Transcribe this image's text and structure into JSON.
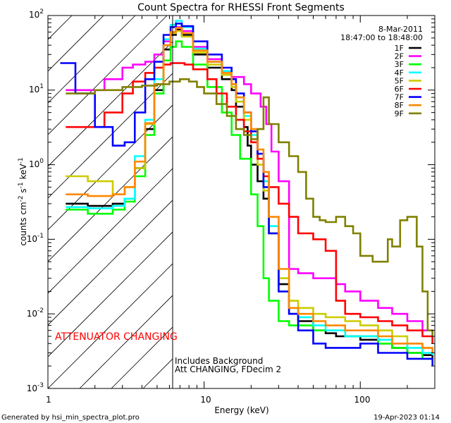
{
  "chart_data": {
    "type": "line",
    "title": "Count Spectra for RHESSI Front Segments",
    "xlabel": "Energy (keV)",
    "ylabel": "counts cm-2 s-1 keV-1",
    "xscale": "log",
    "yscale": "log",
    "xlim": [
      1,
      300
    ],
    "ylim": [
      0.001,
      100
    ],
    "x_tick_labels": [
      "1",
      "10",
      "100"
    ],
    "y_tick_labels": [
      "10-3",
      "10-2",
      "10-1",
      "100",
      "101",
      "102"
    ],
    "date": "8-Mar-2011",
    "time_range": "18:47:00 to 18:48:00",
    "attenuator_label": "ATTENUATOR CHANGING",
    "note_line1": "Includes Background",
    "note_line2": "Att CHANGING, FDecim 2",
    "footer_left": "Generated by hsi_min_spectra_plot.pro",
    "footer_right": "19-Apr-2023 01:14",
    "attenuator_boundary_keV": 6,
    "series": [
      {
        "name": "1F",
        "color": "#000000",
        "x": [
          1.3,
          1.8,
          2.6,
          3.1,
          3.6,
          4.2,
          4.8,
          5.5,
          6.1,
          6.6,
          7.2,
          8.5,
          10.5,
          13,
          15,
          16,
          18,
          19,
          20,
          22,
          24,
          26,
          30,
          35,
          40,
          50,
          60,
          70,
          80,
          100,
          130,
          160,
          200,
          250,
          290
        ],
        "y": [
          0.3,
          0.28,
          0.3,
          0.35,
          0.9,
          3,
          10,
          35,
          55,
          65,
          55,
          30,
          20,
          14,
          10,
          6,
          3.2,
          1.8,
          1,
          0.6,
          0.35,
          0.12,
          0.025,
          0.01,
          0.008,
          0.006,
          0.0055,
          0.005,
          0.005,
          0.0045,
          0.004,
          0.0035,
          0.003,
          0.0028,
          0.0025
        ]
      },
      {
        "name": "2F",
        "color": "#ff00ff",
        "x": [
          1.3,
          1.6,
          2.3,
          3,
          3.5,
          4.2,
          4.8,
          5.5,
          6.1,
          6.6,
          7.2,
          8.5,
          10.5,
          13,
          15,
          18,
          20,
          23,
          25,
          27,
          30,
          35,
          40,
          50,
          60,
          70,
          80,
          100,
          130,
          160,
          200,
          250,
          290
        ],
        "y": [
          10,
          10,
          14,
          20,
          22,
          24,
          30,
          45,
          60,
          70,
          62,
          38,
          26,
          18,
          15,
          12,
          9,
          6,
          3.5,
          1.5,
          0.6,
          0.04,
          0.035,
          0.03,
          0.03,
          0.025,
          0.02,
          0.015,
          0.012,
          0.01,
          0.008,
          0.006,
          0.004
        ]
      },
      {
        "name": "3F",
        "color": "#00ff00",
        "x": [
          1.3,
          1.8,
          2.6,
          3.1,
          3.6,
          4.2,
          4.8,
          5.5,
          6.1,
          6.6,
          7.2,
          8.5,
          10.5,
          13,
          15,
          17,
          20,
          22,
          24,
          26,
          30,
          35,
          40,
          50,
          60,
          80,
          100,
          130,
          160,
          200,
          250,
          290
        ],
        "y": [
          0.25,
          0.22,
          0.25,
          0.32,
          0.7,
          2.5,
          9,
          25,
          38,
          45,
          38,
          22,
          11,
          5,
          2.5,
          1.2,
          0.4,
          0.15,
          0.03,
          0.015,
          0.008,
          0.007,
          0.007,
          0.006,
          0.006,
          0.005,
          0.005,
          0.004,
          0.0035,
          0.003,
          0.0025,
          0.0025
        ]
      },
      {
        "name": "4F",
        "color": "#00ffff",
        "x": [
          1.3,
          1.8,
          2.6,
          3.1,
          3.6,
          4.2,
          4.8,
          5.5,
          6.1,
          6.6,
          7.2,
          8.5,
          10.5,
          13,
          15,
          16,
          18,
          20,
          22,
          24,
          26,
          30,
          35,
          40,
          50,
          60,
          80,
          100,
          130,
          160,
          200,
          250,
          290
        ],
        "y": [
          0.27,
          0.26,
          0.28,
          0.35,
          1.3,
          4,
          14,
          48,
          75,
          85,
          70,
          36,
          24,
          18,
          12,
          7,
          4.5,
          2.5,
          1.2,
          0.6,
          0.15,
          0.03,
          0.012,
          0.009,
          0.007,
          0.006,
          0.005,
          0.005,
          0.0045,
          0.004,
          0.0035,
          0.003,
          0.0028
        ]
      },
      {
        "name": "5F",
        "color": "#cccc00",
        "x": [
          1.3,
          1.8,
          2.6,
          3.1,
          3.6,
          4.2,
          4.8,
          5.5,
          6.1,
          6.6,
          7.2,
          8.5,
          10.5,
          13,
          15,
          16,
          18,
          20,
          22,
          24,
          26,
          30,
          35,
          40,
          50,
          60,
          80,
          100,
          130,
          160,
          200,
          250,
          290
        ],
        "y": [
          0.7,
          0.6,
          0.4,
          0.5,
          0.9,
          3.5,
          12,
          40,
          58,
          62,
          52,
          32,
          22,
          16,
          11,
          7,
          4,
          2,
          1,
          0.45,
          0.12,
          0.03,
          0.015,
          0.012,
          0.01,
          0.009,
          0.008,
          0.007,
          0.006,
          0.005,
          0.004,
          0.0035,
          0.003
        ]
      },
      {
        "name": "6F",
        "color": "#ff0000",
        "x": [
          1.3,
          1.6,
          2.3,
          3,
          3.5,
          4.2,
          4.8,
          5.5,
          6.1,
          6.6,
          7.5,
          8.5,
          10.5,
          12,
          14,
          16,
          18,
          20,
          22,
          24,
          26,
          30,
          35,
          40,
          50,
          60,
          70,
          80,
          100,
          130,
          160,
          200,
          250,
          290
        ],
        "y": [
          3.2,
          3.2,
          5,
          9,
          13,
          17,
          20,
          22,
          23,
          23,
          22,
          19,
          14,
          9,
          6,
          4,
          2.8,
          2,
          1.2,
          0.7,
          0.5,
          0.3,
          0.2,
          0.12,
          0.1,
          0.07,
          0.015,
          0.01,
          0.009,
          0.008,
          0.007,
          0.006,
          0.005,
          0.004
        ]
      },
      {
        "name": "7F",
        "color": "#0000ff",
        "x": [
          1.2,
          1.5,
          2,
          2.6,
          3.1,
          3.6,
          4.2,
          4.8,
          5.5,
          6.1,
          6.6,
          7.2,
          8.5,
          10.5,
          13,
          15,
          16,
          18,
          20,
          22,
          24,
          26,
          30,
          35,
          40,
          50,
          60,
          80,
          100,
          130,
          160,
          200,
          250,
          290
        ],
        "y": [
          23,
          9,
          3.2,
          1.8,
          2,
          5,
          14,
          24,
          55,
          70,
          78,
          72,
          45,
          30,
          20,
          14,
          9,
          5,
          2.8,
          1.4,
          0.5,
          0.12,
          0.02,
          0.01,
          0.006,
          0.004,
          0.0035,
          0.0035,
          0.004,
          0.003,
          0.003,
          0.0025,
          0.0025,
          0.002
        ]
      },
      {
        "name": "8F",
        "color": "#ff8800",
        "x": [
          1.3,
          1.8,
          2.6,
          3.1,
          3.6,
          4.2,
          4.8,
          5.5,
          6.1,
          6.6,
          7.2,
          8.5,
          10.5,
          13,
          15,
          16,
          18,
          20,
          22,
          24,
          26,
          30,
          35,
          40,
          50,
          60,
          80,
          100,
          130,
          160,
          200,
          250,
          290
        ],
        "y": [
          0.4,
          0.38,
          0.4,
          0.5,
          1.1,
          3.6,
          12,
          40,
          60,
          68,
          58,
          34,
          24,
          17,
          12,
          8,
          5,
          3,
          1.6,
          0.8,
          0.2,
          0.04,
          0.012,
          0.01,
          0.008,
          0.007,
          0.006,
          0.006,
          0.005,
          0.004,
          0.004,
          0.0035,
          0.003
        ]
      },
      {
        "name": "9F",
        "color": "#808000",
        "x": [
          1.3,
          2,
          3,
          4,
          5,
          6,
          7,
          8,
          9,
          10,
          12,
          14,
          16,
          18,
          20,
          22,
          24,
          26,
          30,
          35,
          40,
          45,
          50,
          55,
          60,
          70,
          80,
          90,
          100,
          120,
          140,
          150,
          160,
          180,
          200,
          230,
          250,
          270,
          290
        ],
        "y": [
          9,
          10,
          11,
          11.5,
          12,
          13,
          14,
          13,
          11,
          9,
          6.5,
          4.5,
          3,
          2.5,
          2.2,
          3,
          8,
          3.5,
          2,
          1.3,
          0.8,
          0.35,
          0.2,
          0.18,
          0.17,
          0.2,
          0.15,
          0.12,
          0.06,
          0.05,
          0.05,
          0.1,
          0.08,
          0.18,
          0.2,
          0.08,
          0.02,
          0.006,
          0.005
        ]
      }
    ]
  }
}
